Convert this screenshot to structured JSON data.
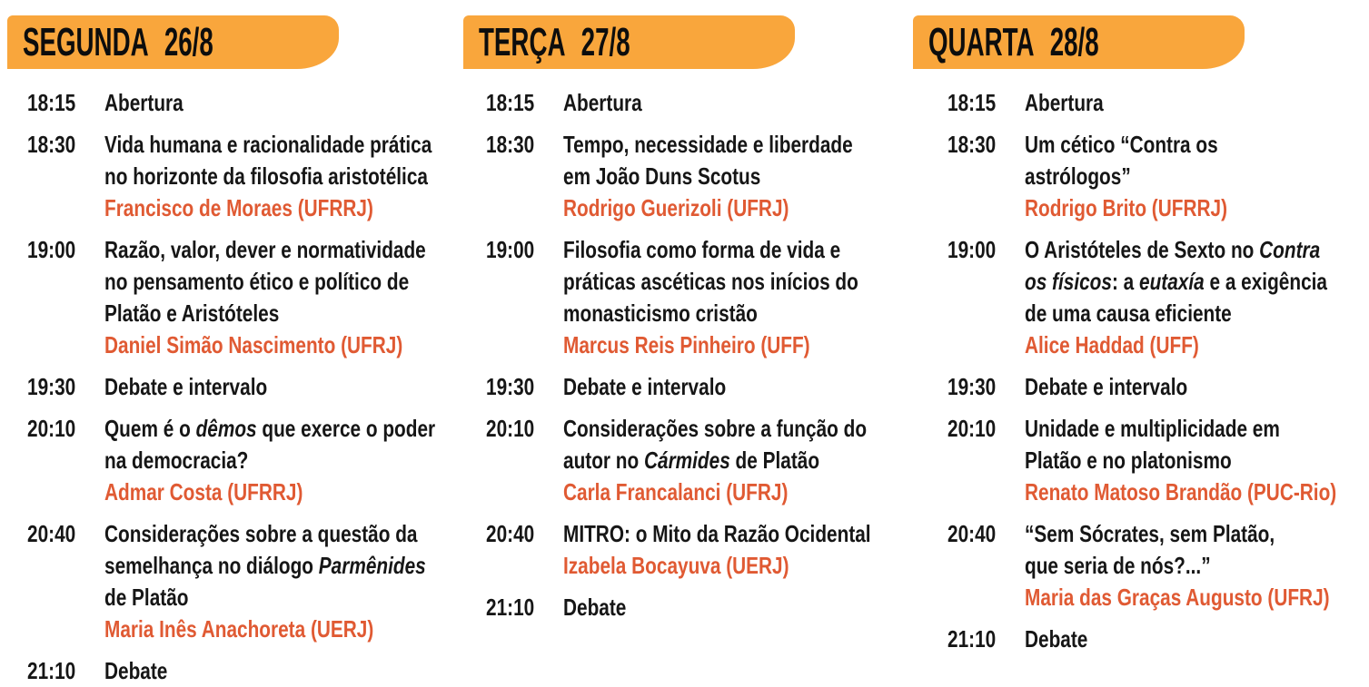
{
  "colors": {
    "banner_orange": "#F9A63C",
    "speaker_orange": "#E05A33",
    "text_black": "#161616"
  },
  "emphasis_marker": "*",
  "columns": [
    {
      "title": "SEGUNDA 26/8",
      "events": [
        {
          "time": "18:15",
          "lines": [
            "Abertura"
          ],
          "speaker": ""
        },
        {
          "time": "18:30",
          "lines": [
            "Vida humana e racionalidade prática",
            "no horizonte da filosofia aristotélica"
          ],
          "speaker": "Francisco de Moraes (UFRRJ)"
        },
        {
          "time": "19:00",
          "lines": [
            "Razão, valor, dever e normatividade",
            "no pensamento ético e político de",
            "Platão e Aristóteles"
          ],
          "speaker": "Daniel Simão Nascimento (UFRJ)"
        },
        {
          "time": "19:30",
          "lines": [
            "Debate e intervalo"
          ],
          "speaker": ""
        },
        {
          "time": "20:10",
          "lines": [
            "Quem é o *dêmos* que exerce o poder",
            "na democracia?"
          ],
          "speaker": "Admar Costa (UFRRJ)"
        },
        {
          "time": "20:40",
          "lines": [
            "Considerações sobre a questão da",
            "semelhança no diálogo *Parmênides*",
            "de Platão"
          ],
          "speaker": "Maria Inês Anachoreta (UERJ)"
        },
        {
          "time": "21:10",
          "lines": [
            "Debate"
          ],
          "speaker": ""
        }
      ]
    },
    {
      "title": "TERÇA 27/8",
      "events": [
        {
          "time": "18:15",
          "lines": [
            "Abertura"
          ],
          "speaker": ""
        },
        {
          "time": "18:30",
          "lines": [
            "Tempo, necessidade e liberdade",
            "em João Duns Scotus"
          ],
          "speaker": "Rodrigo Guerizoli (UFRJ)"
        },
        {
          "time": "19:00",
          "lines": [
            "Filosofia como forma de vida e",
            "práticas ascéticas nos inícios do",
            "monasticismo cristão"
          ],
          "speaker": "Marcus Reis Pinheiro (UFF)"
        },
        {
          "time": "19:30",
          "lines": [
            "Debate e intervalo"
          ],
          "speaker": ""
        },
        {
          "time": "20:10",
          "lines": [
            "Considerações sobre a função do",
            "autor no *Cármides* de Platão"
          ],
          "speaker": "Carla Francalanci (UFRJ)"
        },
        {
          "time": "20:40",
          "lines": [
            "MITRO: o Mito da Razão Ocidental"
          ],
          "speaker": "Izabela Bocayuva (UERJ)"
        },
        {
          "time": "21:10",
          "lines": [
            "Debate"
          ],
          "speaker": ""
        }
      ]
    },
    {
      "title": "QUARTA 28/8",
      "events": [
        {
          "time": "18:15",
          "lines": [
            "Abertura"
          ],
          "speaker": ""
        },
        {
          "time": "18:30",
          "lines": [
            "Um cético “Contra os",
            "astrólogos”"
          ],
          "speaker": "Rodrigo Brito (UFRRJ)"
        },
        {
          "time": "19:00",
          "lines": [
            "O Aristóteles de Sexto no *Contra*",
            "*os físicos*: a *eutaxía* e a exigência",
            "de uma causa eficiente"
          ],
          "speaker": "Alice Haddad (UFF)"
        },
        {
          "time": "19:30",
          "lines": [
            "Debate e intervalo"
          ],
          "speaker": ""
        },
        {
          "time": "20:10",
          "lines": [
            "Unidade e multiplicidade em",
            "Platão e no platonismo"
          ],
          "speaker": "Renato Matoso Brandão (PUC-Rio)"
        },
        {
          "time": "20:40",
          "lines": [
            "“Sem Sócrates, sem Platão,",
            "que seria de nós?...”"
          ],
          "speaker": "Maria das Graças Augusto (UFRJ)"
        },
        {
          "time": "21:10",
          "lines": [
            "Debate"
          ],
          "speaker": ""
        }
      ]
    }
  ]
}
